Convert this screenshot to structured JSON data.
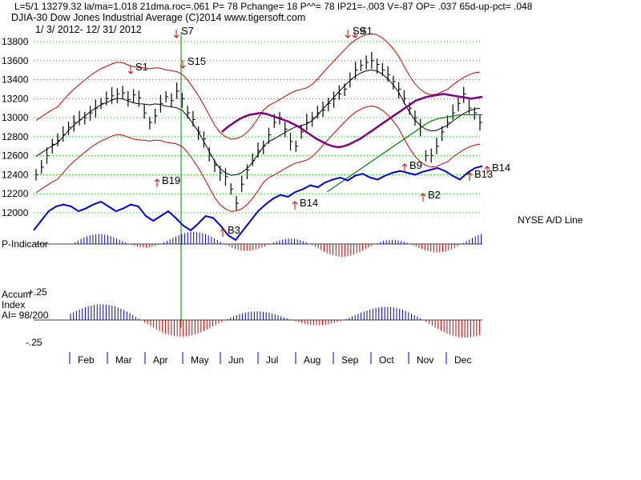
{
  "header": {
    "line1": "L=5/1  13279.32  la/ma=1.018 21dma.roc=.061 P=  78 Pchange=  18 P^^= 78 IP21=-.003 V=-87 OP= .037 65d-up-pct= .048",
    "line2": "DJIA-30  Dow Jones Industrial Average   (C)2014 www.tigersoft.com",
    "line3": "1/ 3/ 2012- 12/ 31/ 2012"
  },
  "panels": {
    "ad_label": "NYSE A/D Line",
    "p_label": "P-Indicator",
    "accum_label1": "Accum",
    "accum_label2": "Index",
    "accum_label3": "AI= 98/200",
    "accum_top": "+.25",
    "accum_bottom": "-.25"
  },
  "colors": {
    "price_bars": "#000000",
    "bands": "#cc0000",
    "ma_purple": "#800080",
    "ma_green": "#008000",
    "ad_line": "#0000dd",
    "grid": "#00aa00",
    "signal_vertical": "#008000"
  },
  "chart_data": {
    "type": "line",
    "title": "DJIA-30  Dow Jones Industrial Average",
    "y_ticks": [
      "13800",
      "13600",
      "13400",
      "13200",
      "13000",
      "12800",
      "12600",
      "12400",
      "12200",
      "12000"
    ],
    "ylim": [
      12000,
      13800
    ],
    "x_months": [
      "Feb",
      "Mar",
      "Apr",
      "May",
      "Jun",
      "Jul",
      "Aug",
      "Sep",
      "Oct",
      "Nov",
      "Dec"
    ],
    "price_close": [
      12400,
      12480,
      12600,
      12720,
      12760,
      12820,
      12900,
      12950,
      12980,
      13000,
      13050,
      13100,
      13150,
      13200,
      13230,
      13250,
      13260,
      13190,
      13240,
      13210,
      13050,
      12950,
      13020,
      13150,
      13220,
      13180,
      13280,
      13200,
      13050,
      12980,
      12850,
      12780,
      12600,
      12500,
      12420,
      12380,
      12250,
      12100,
      12300,
      12450,
      12550,
      12650,
      12700,
      12820,
      12950,
      13000,
      12880,
      12750,
      12700,
      12850,
      12950,
      13000,
      13050,
      13080,
      13150,
      13200,
      13250,
      13300,
      13400,
      13500,
      13550,
      13580,
      13600,
      13560,
      13500,
      13450,
      13380,
      13300,
      13200,
      13100,
      13000,
      12900,
      12600,
      12600,
      12700,
      12850,
      12950,
      13050,
      13150,
      13250,
      13100,
      13050,
      12950
    ],
    "ma_purple": [
      null,
      null,
      null,
      null,
      null,
      null,
      null,
      null,
      null,
      null,
      null,
      null,
      null,
      12850,
      12900,
      12940,
      12980,
      13010,
      13030,
      13040,
      13050,
      13040,
      13020,
      13000,
      12980,
      12960,
      12930,
      12900,
      12860,
      12820,
      12780,
      12750,
      12720,
      12700,
      12690,
      12700,
      12720,
      12750,
      12780,
      12820,
      12860,
      12900,
      12940,
      12980,
      13020,
      13060,
      13100,
      13140,
      13180,
      13200,
      13220,
      13230,
      13240,
      13250,
      13240,
      13230,
      13220,
      13210,
      13200,
      13210,
      13220
    ],
    "ma_green": [
      null,
      null,
      null,
      null,
      null,
      null,
      null,
      null,
      null,
      null,
      null,
      null,
      null,
      null,
      null,
      null,
      null,
      null,
      null,
      null,
      null,
      null,
      null,
      null,
      null,
      null,
      null,
      null,
      null,
      null,
      null,
      null,
      12220,
      12260,
      12300,
      12340,
      12380,
      12420,
      12460,
      12500,
      12540,
      12580,
      12620,
      12660,
      12700,
      12740,
      12780,
      12820,
      12860,
      12900,
      12940,
      12970,
      12990,
      13000,
      13010,
      13020,
      13030,
      13030,
      13030,
      13030,
      13030
    ],
    "ad_line": [
      0.35,
      0.45,
      0.55,
      0.6,
      0.62,
      0.6,
      0.55,
      0.58,
      0.62,
      0.65,
      0.6,
      0.55,
      0.58,
      0.62,
      0.6,
      0.5,
      0.45,
      0.5,
      0.55,
      0.48,
      0.4,
      0.35,
      0.42,
      0.5,
      0.48,
      0.4,
      0.3,
      0.25,
      0.35,
      0.45,
      0.55,
      0.62,
      0.68,
      0.72,
      0.7,
      0.75,
      0.78,
      0.82,
      0.8,
      0.85,
      0.88,
      0.9,
      0.87,
      0.92,
      0.94,
      0.9,
      0.88,
      0.92,
      0.95,
      0.97,
      0.95,
      0.93,
      0.96,
      0.98,
      1.0,
      0.97,
      0.92,
      0.88,
      0.95,
      1.0,
      1.02
    ],
    "signals": [
      {
        "label": "S1",
        "type": "sell"
      },
      {
        "label": "S7",
        "type": "sell"
      },
      {
        "label": "S15",
        "type": "sell"
      },
      {
        "label": "S9",
        "type": "sell"
      },
      {
        "label": "S1",
        "type": "sell"
      },
      {
        "label": "B19",
        "type": "buy"
      },
      {
        "label": "B3",
        "type": "buy"
      },
      {
        "label": "B14",
        "type": "buy"
      },
      {
        "label": "B9",
        "type": "buy"
      },
      {
        "label": "B2",
        "type": "buy"
      },
      {
        "label": "B13",
        "type": "buy"
      },
      {
        "label": "B14",
        "type": "buy"
      }
    ]
  }
}
